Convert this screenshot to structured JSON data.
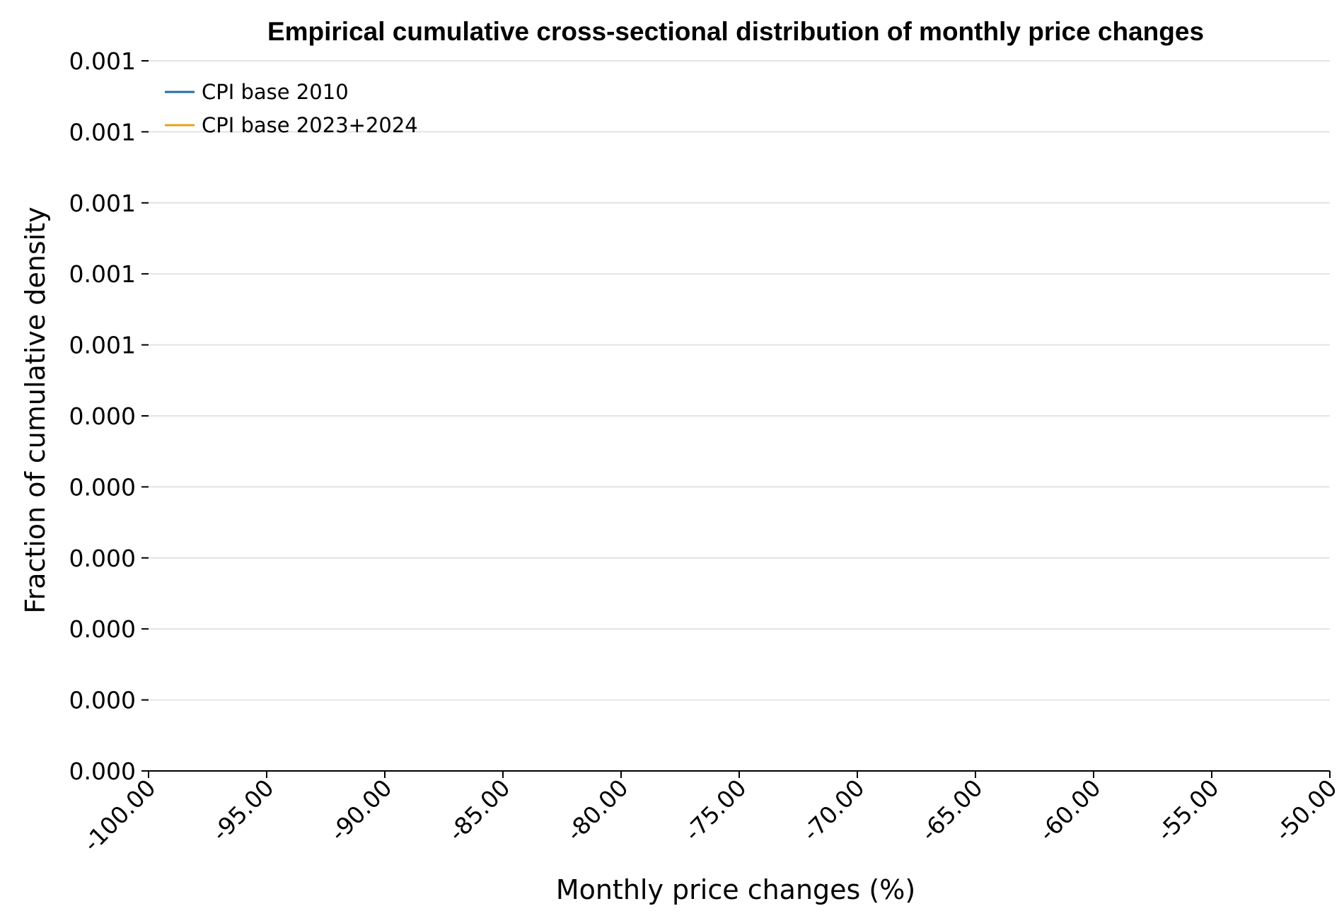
{
  "chart_data": {
    "type": "line",
    "title": "Empirical cumulative cross-sectional distribution of monthly price changes",
    "xlabel": "Monthly price changes (%)",
    "ylabel": "Fraction of cumulative density",
    "xlim": [
      -100,
      -50
    ],
    "ylim": [
      0,
      0.001
    ],
    "x_ticks": [
      -100,
      -95,
      -90,
      -85,
      -80,
      -75,
      -70,
      -65,
      -60,
      -55,
      -50
    ],
    "x_tick_labels": [
      "-100.00",
      "-95.00",
      "-90.00",
      "-85.00",
      "-80.00",
      "-75.00",
      "-70.00",
      "-65.00",
      "-60.00",
      "-55.00",
      "-50.00"
    ],
    "y_ticks": [
      0,
      0.0001,
      0.0002,
      0.0003,
      0.0004,
      0.0005,
      0.0006,
      0.0007,
      0.0008,
      0.0009,
      0.001
    ],
    "y_tick_labels": [
      "0.000",
      "0.000",
      "0.000",
      "0.000",
      "0.000",
      "0.000",
      "0.001",
      "0.001",
      "0.001",
      "0.001",
      "0.001"
    ],
    "grid": "horizontal",
    "legend_position": "top-left",
    "series": [
      {
        "name": "CPI base 2010",
        "color": "#1f6fa3",
        "x": [],
        "y": []
      },
      {
        "name": "CPI base 2023+2024",
        "color": "#e6a21f",
        "x": [],
        "y": []
      }
    ]
  }
}
